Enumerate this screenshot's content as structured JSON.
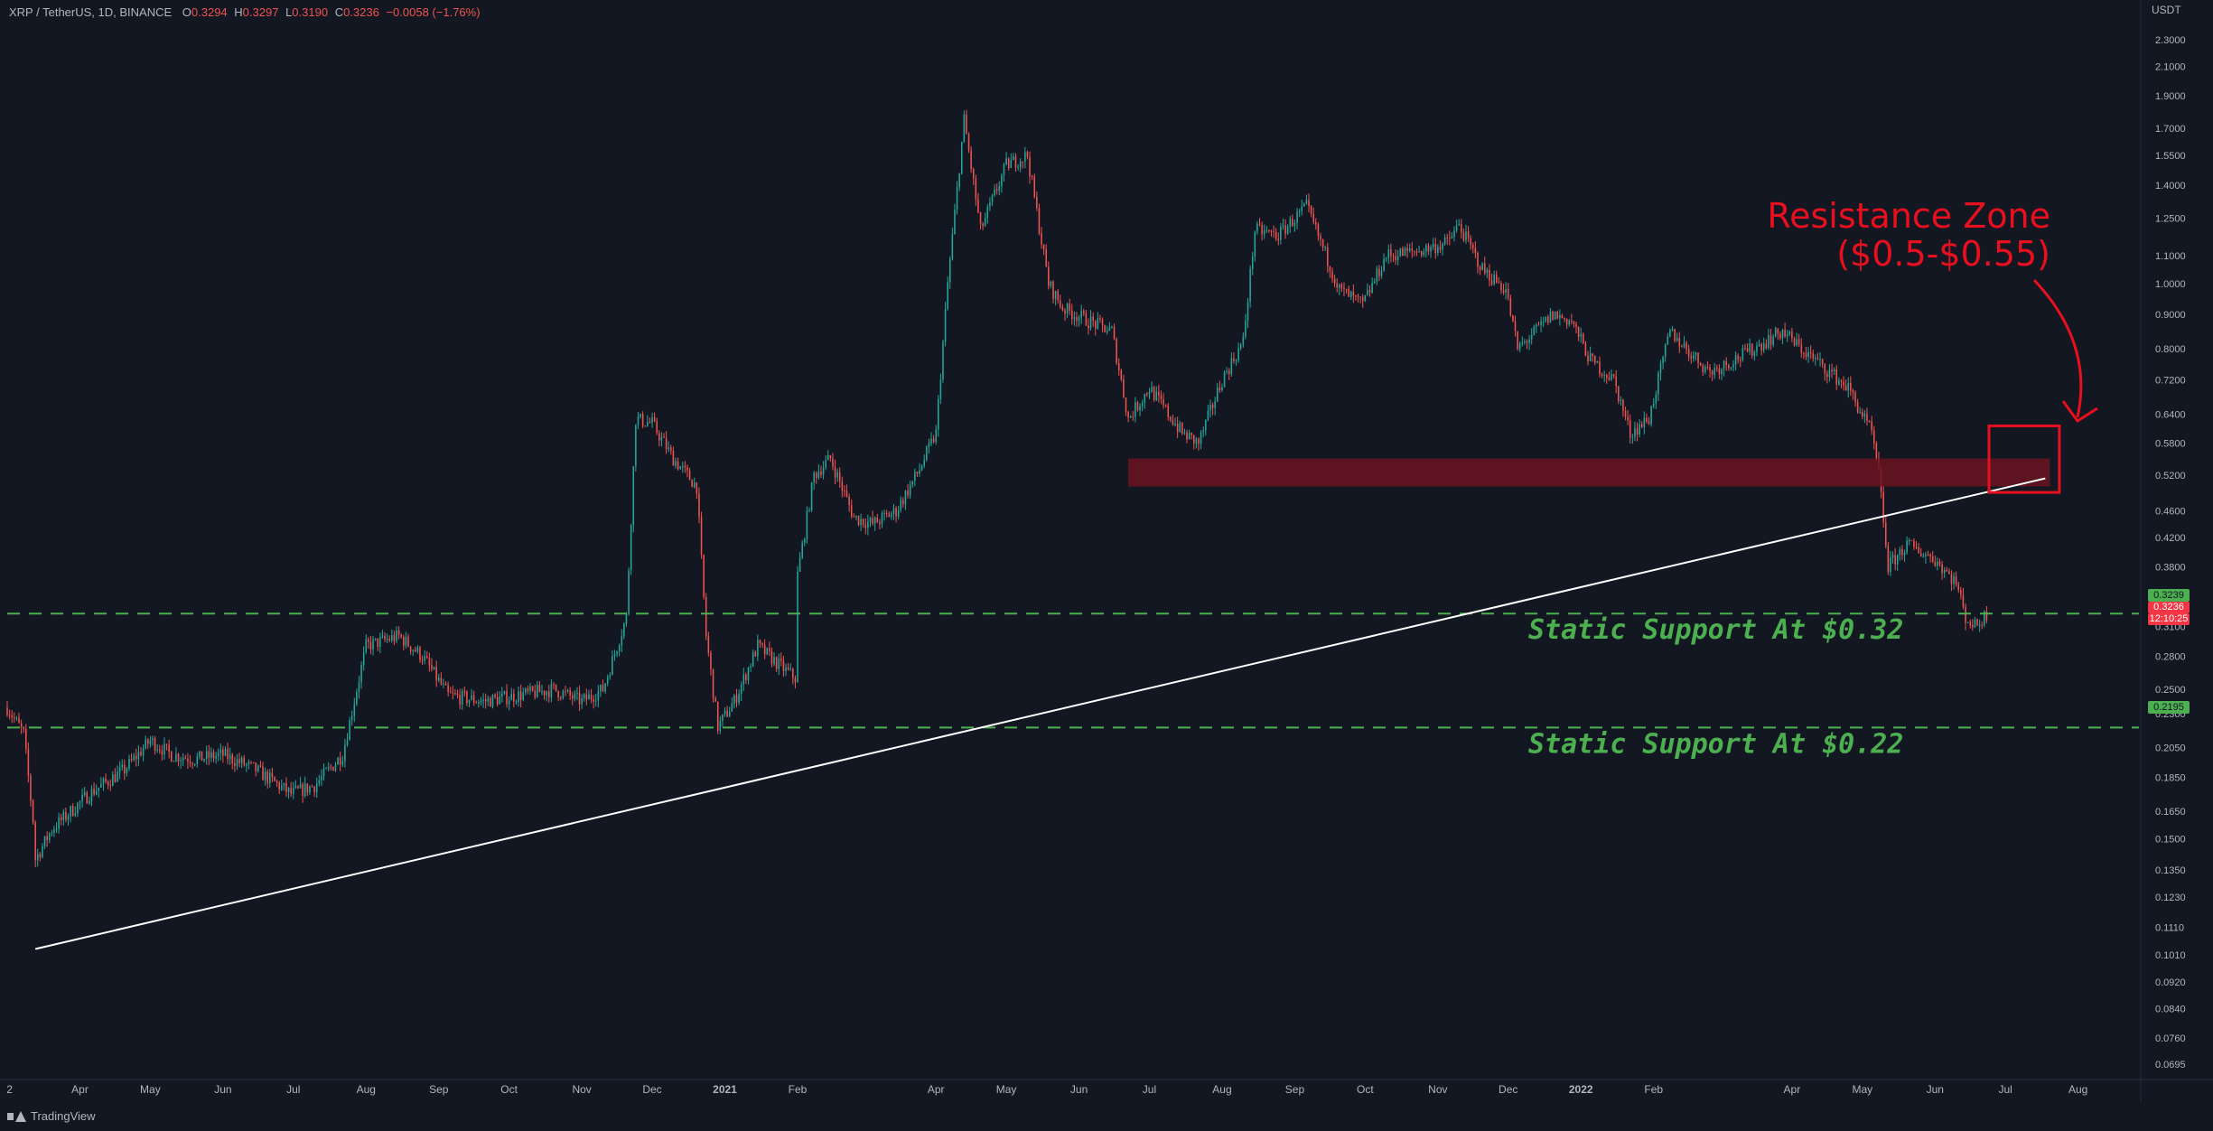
{
  "header": {
    "symbol": "XRP / TetherUS, 1D, BINANCE",
    "open_label": "O",
    "open": "0.3294",
    "high_label": "H",
    "high": "0.3297",
    "low_label": "L",
    "low": "0.3190",
    "close_label": "C",
    "close": "0.3236",
    "change": "−0.0058 (−1.76%)"
  },
  "currency": "USDT",
  "watermark": "TradingView",
  "colors": {
    "background": "#131722",
    "up": "#26a69a",
    "down": "#ef5350",
    "support_line": "#4caf50",
    "resistance_zone": "#6b1420",
    "annotation_red": "#e8101f",
    "trendline": "#ffffff"
  },
  "price_tags": {
    "support_032": "0.3239",
    "last_price": "0.3236",
    "countdown": "12:10:25",
    "support_022": "0.2195"
  },
  "chart_data": {
    "type": "candlestick",
    "title": "",
    "y_scale": "log",
    "ylim": [
      0.0645,
      2.4
    ],
    "y_ticks": [
      2.3,
      2.1,
      1.9,
      1.7,
      1.55,
      1.4,
      1.25,
      1.1,
      1.0,
      0.9,
      0.8,
      0.72,
      0.64,
      0.58,
      0.52,
      0.46,
      0.42,
      0.38,
      0.34,
      0.31,
      0.28,
      0.25,
      0.23,
      0.205,
      0.185,
      0.165,
      0.15,
      0.135,
      0.123,
      0.111,
      0.101,
      0.092,
      0.084,
      0.076,
      0.0695
    ],
    "y_tick_labels": [
      "2.3000",
      "2.1000",
      "1.9000",
      "1.7000",
      "1.5500",
      "1.4000",
      "1.2500",
      "1.1000",
      "1.0000",
      "0.9000",
      "0.8000",
      "0.7200",
      "0.6400",
      "0.5800",
      "0.5200",
      "0.4600",
      "0.4200",
      "0.3800",
      "0.3400",
      "0.3100",
      "0.2800",
      "0.2500",
      "0.2300",
      "0.2050",
      "0.1850",
      "0.1650",
      "0.1500",
      "0.1350",
      "0.1230",
      "0.1110",
      "0.1010",
      "0.0920",
      "0.0840",
      "0.0760",
      "0.0695"
    ],
    "x_range": [
      "2020-03-01",
      "2022-08-20"
    ],
    "x_ticks": [
      {
        "date": "2020-03-02",
        "label": "2"
      },
      {
        "date": "2020-04-01",
        "label": "Apr"
      },
      {
        "date": "2020-05-01",
        "label": "May"
      },
      {
        "date": "2020-06-01",
        "label": "Jun"
      },
      {
        "date": "2020-07-01",
        "label": "Jul"
      },
      {
        "date": "2020-08-01",
        "label": "Aug"
      },
      {
        "date": "2020-09-01",
        "label": "Sep"
      },
      {
        "date": "2020-10-01",
        "label": "Oct"
      },
      {
        "date": "2020-11-01",
        "label": "Nov"
      },
      {
        "date": "2020-12-01",
        "label": "Dec"
      },
      {
        "date": "2021-01-01",
        "label": "2021"
      },
      {
        "date": "2021-02-01",
        "label": "Feb"
      },
      {
        "date": "2021-04-01",
        "label": "Apr"
      },
      {
        "date": "2021-05-01",
        "label": "May"
      },
      {
        "date": "2021-06-01",
        "label": "Jun"
      },
      {
        "date": "2021-07-01",
        "label": "Jul"
      },
      {
        "date": "2021-08-01",
        "label": "Aug"
      },
      {
        "date": "2021-09-01",
        "label": "Sep"
      },
      {
        "date": "2021-10-01",
        "label": "Oct"
      },
      {
        "date": "2021-11-01",
        "label": "Nov"
      },
      {
        "date": "2021-12-01",
        "label": "Dec"
      },
      {
        "date": "2022-01-01",
        "label": "2022"
      },
      {
        "date": "2022-02-01",
        "label": "Feb"
      },
      {
        "date": "2022-04-01",
        "label": "Apr"
      },
      {
        "date": "2022-05-01",
        "label": "May"
      },
      {
        "date": "2022-06-01",
        "label": "Jun"
      },
      {
        "date": "2022-07-01",
        "label": "Jul"
      },
      {
        "date": "2022-08-01",
        "label": "Aug"
      }
    ],
    "price_path": [
      [
        "2020-03-01",
        0.235
      ],
      [
        "2020-03-08",
        0.215
      ],
      [
        "2020-03-12",
        0.16
      ],
      [
        "2020-03-13",
        0.14
      ],
      [
        "2020-03-20",
        0.155
      ],
      [
        "2020-04-05",
        0.175
      ],
      [
        "2020-04-20",
        0.19
      ],
      [
        "2020-05-01",
        0.21
      ],
      [
        "2020-05-10",
        0.2
      ],
      [
        "2020-05-20",
        0.197
      ],
      [
        "2020-06-01",
        0.2
      ],
      [
        "2020-06-15",
        0.19
      ],
      [
        "2020-06-30",
        0.175
      ],
      [
        "2020-07-10",
        0.18
      ],
      [
        "2020-07-22",
        0.2
      ],
      [
        "2020-08-01",
        0.29
      ],
      [
        "2020-08-15",
        0.3
      ],
      [
        "2020-08-25",
        0.28
      ],
      [
        "2020-09-05",
        0.245
      ],
      [
        "2020-09-20",
        0.24
      ],
      [
        "2020-10-05",
        0.245
      ],
      [
        "2020-10-20",
        0.25
      ],
      [
        "2020-11-01",
        0.24
      ],
      [
        "2020-11-10",
        0.25
      ],
      [
        "2020-11-20",
        0.32
      ],
      [
        "2020-11-24",
        0.63
      ],
      [
        "2020-12-01",
        0.62
      ],
      [
        "2020-12-10",
        0.55
      ],
      [
        "2020-12-20",
        0.5
      ],
      [
        "2020-12-24",
        0.3
      ],
      [
        "2020-12-29",
        0.22
      ],
      [
        "2021-01-05",
        0.24
      ],
      [
        "2021-01-15",
        0.29
      ],
      [
        "2021-01-25",
        0.27
      ],
      [
        "2021-01-31",
        0.26
      ],
      [
        "2021-02-01",
        0.37
      ],
      [
        "2021-02-08",
        0.52
      ],
      [
        "2021-02-15",
        0.55
      ],
      [
        "2021-02-25",
        0.45
      ],
      [
        "2021-03-05",
        0.44
      ],
      [
        "2021-03-15",
        0.46
      ],
      [
        "2021-03-25",
        0.53
      ],
      [
        "2021-04-01",
        0.6
      ],
      [
        "2021-04-06",
        1.0
      ],
      [
        "2021-04-13",
        1.75
      ],
      [
        "2021-04-20",
        1.2
      ],
      [
        "2021-05-01",
        1.5
      ],
      [
        "2021-05-10",
        1.55
      ],
      [
        "2021-05-19",
        1.0
      ],
      [
        "2021-05-25",
        0.92
      ],
      [
        "2021-06-05",
        0.88
      ],
      [
        "2021-06-15",
        0.85
      ],
      [
        "2021-06-22",
        0.63
      ],
      [
        "2021-07-01",
        0.7
      ],
      [
        "2021-07-15",
        0.6
      ],
      [
        "2021-07-22",
        0.58
      ],
      [
        "2021-08-01",
        0.72
      ],
      [
        "2021-08-10",
        0.82
      ],
      [
        "2021-08-15",
        1.2
      ],
      [
        "2021-08-25",
        1.18
      ],
      [
        "2021-09-06",
        1.3
      ],
      [
        "2021-09-10",
        1.2
      ],
      [
        "2021-09-20",
        0.98
      ],
      [
        "2021-09-30",
        0.93
      ],
      [
        "2021-10-10",
        1.1
      ],
      [
        "2021-10-25",
        1.12
      ],
      [
        "2021-11-05",
        1.15
      ],
      [
        "2021-11-10",
        1.22
      ],
      [
        "2021-11-20",
        1.05
      ],
      [
        "2021-11-30",
        0.98
      ],
      [
        "2021-12-05",
        0.8
      ],
      [
        "2021-12-20",
        0.9
      ],
      [
        "2021-12-28",
        0.88
      ],
      [
        "2022-01-05",
        0.77
      ],
      [
        "2022-01-15",
        0.72
      ],
      [
        "2022-01-22",
        0.6
      ],
      [
        "2022-01-30",
        0.63
      ],
      [
        "2022-02-08",
        0.85
      ],
      [
        "2022-02-15",
        0.8
      ],
      [
        "2022-02-25",
        0.74
      ],
      [
        "2022-03-10",
        0.78
      ],
      [
        "2022-03-28",
        0.85
      ],
      [
        "2022-04-05",
        0.8
      ],
      [
        "2022-04-15",
        0.75
      ],
      [
        "2022-04-25",
        0.7
      ],
      [
        "2022-05-05",
        0.6
      ],
      [
        "2022-05-08",
        0.52
      ],
      [
        "2022-05-12",
        0.38
      ],
      [
        "2022-05-20",
        0.41
      ],
      [
        "2022-06-01",
        0.39
      ],
      [
        "2022-06-10",
        0.36
      ],
      [
        "2022-06-14",
        0.32
      ],
      [
        "2022-06-18",
        0.31
      ],
      [
        "2022-06-23",
        0.3236
      ]
    ],
    "support_levels": [
      {
        "price": 0.3239,
        "label": "Static Support At $0.32"
      },
      {
        "price": 0.2195,
        "label": "Static Support At $0.22"
      }
    ],
    "resistance_zone": {
      "from": "2021-06-22",
      "to": "2022-07-20",
      "low": 0.5,
      "high": 0.55
    },
    "resistance_label_line1": "Resistance Zone",
    "resistance_label_line2": "($0.5-$0.55)",
    "trendline": {
      "start": [
        "2020-03-13",
        0.103
      ],
      "end": [
        "2022-07-18",
        0.514
      ]
    }
  }
}
